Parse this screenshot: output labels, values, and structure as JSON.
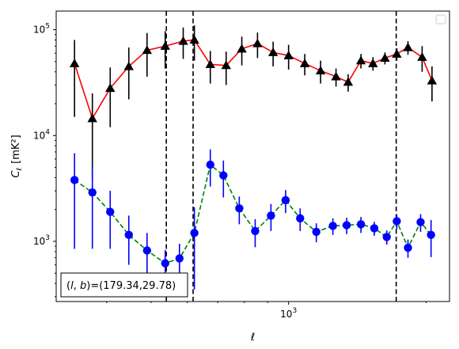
{
  "chart_data": {
    "type": "line",
    "xscale": "log",
    "yscale": "log",
    "xlabel": "ℓ",
    "ylabel_main": "C",
    "ylabel_sub": "ℓ",
    "ylabel_unit": "[mK²]",
    "xlim": [
      310,
      2250
    ],
    "ylim": [
      270,
      150000
    ],
    "x_ticks": [
      {
        "value": 1000,
        "label_base": "10",
        "label_exp": "3"
      }
    ],
    "y_ticks": [
      {
        "value": 1000,
        "label_base": "10",
        "label_exp": "3"
      },
      {
        "value": 10000,
        "label_base": "10",
        "label_exp": "4"
      },
      {
        "value": 100000,
        "label_base": "10",
        "label_exp": "5"
      }
    ],
    "vlines": [
      540,
      618,
      1720
    ],
    "annotation": "(l, b)=(179.34,29.78)",
    "annotation_parts": {
      "open": "(",
      "l": "l",
      "comma": ", ",
      "b": "b",
      "close": ")",
      "value": "=(179.34,29.78)"
    },
    "legend_position": "top-right",
    "series": [
      {
        "color": "#ff0000",
        "line_style": "solid",
        "marker": "triangle",
        "marker_color": "#000000",
        "errorbar_color": "#000000",
        "points": [
          {
            "x": 340,
            "y": 48000,
            "lo": 15000,
            "hi": 80000
          },
          {
            "x": 372,
            "y": 14500,
            "lo": 4000,
            "hi": 25000
          },
          {
            "x": 407,
            "y": 28000,
            "lo": 12000,
            "hi": 44000
          },
          {
            "x": 447,
            "y": 45000,
            "lo": 22000,
            "hi": 68000
          },
          {
            "x": 490,
            "y": 64000,
            "lo": 36000,
            "hi": 93000
          },
          {
            "x": 537,
            "y": 70000,
            "lo": 43000,
            "hi": 97000
          },
          {
            "x": 588,
            "y": 78000,
            "lo": 53000,
            "hi": 105000
          },
          {
            "x": 622,
            "y": 80000,
            "lo": 51000,
            "hi": 110000
          },
          {
            "x": 674,
            "y": 47000,
            "lo": 31000,
            "hi": 63000
          },
          {
            "x": 730,
            "y": 46000,
            "lo": 30000,
            "hi": 62000
          },
          {
            "x": 790,
            "y": 66000,
            "lo": 46000,
            "hi": 86000
          },
          {
            "x": 855,
            "y": 74000,
            "lo": 54000,
            "hi": 94000
          },
          {
            "x": 925,
            "y": 61000,
            "lo": 45000,
            "hi": 77000
          },
          {
            "x": 1000,
            "y": 57000,
            "lo": 42000,
            "hi": 72000
          },
          {
            "x": 1085,
            "y": 48000,
            "lo": 37000,
            "hi": 59000
          },
          {
            "x": 1175,
            "y": 41000,
            "lo": 31000,
            "hi": 51000
          },
          {
            "x": 1270,
            "y": 36000,
            "lo": 29000,
            "hi": 43000
          },
          {
            "x": 1350,
            "y": 32000,
            "lo": 26000,
            "hi": 38000
          },
          {
            "x": 1440,
            "y": 51000,
            "lo": 43000,
            "hi": 59000
          },
          {
            "x": 1530,
            "y": 48000,
            "lo": 41000,
            "hi": 55000
          },
          {
            "x": 1625,
            "y": 54000,
            "lo": 47000,
            "hi": 61000
          },
          {
            "x": 1725,
            "y": 59000,
            "lo": 51000,
            "hi": 67000
          },
          {
            "x": 1825,
            "y": 68000,
            "lo": 58000,
            "hi": 78000
          },
          {
            "x": 1960,
            "y": 55000,
            "lo": 40000,
            "hi": 70000
          },
          {
            "x": 2060,
            "y": 33000,
            "lo": 21000,
            "hi": 45000
          }
        ]
      },
      {
        "color": "#008000",
        "line_style": "dashed",
        "marker": "circle",
        "marker_color": "#0000ff",
        "errorbar_color": "#0000ff",
        "points": [
          {
            "x": 340,
            "y": 3800,
            "lo": 850,
            "hi": 6800
          },
          {
            "x": 372,
            "y": 2900,
            "lo": 850,
            "hi": 5000
          },
          {
            "x": 407,
            "y": 1900,
            "lo": 850,
            "hi": 3000
          },
          {
            "x": 447,
            "y": 1150,
            "lo": 600,
            "hi": 1750
          },
          {
            "x": 490,
            "y": 820,
            "lo": 450,
            "hi": 1200
          },
          {
            "x": 537,
            "y": 620,
            "lo": 420,
            "hi": 830
          },
          {
            "x": 577,
            "y": 690,
            "lo": 450,
            "hi": 950
          },
          {
            "x": 622,
            "y": 1200,
            "lo": 350,
            "hi": 2100
          },
          {
            "x": 674,
            "y": 5300,
            "lo": 3300,
            "hi": 7400
          },
          {
            "x": 720,
            "y": 4200,
            "lo": 2600,
            "hi": 5800
          },
          {
            "x": 780,
            "y": 2050,
            "lo": 1450,
            "hi": 2650
          },
          {
            "x": 845,
            "y": 1250,
            "lo": 880,
            "hi": 1620
          },
          {
            "x": 915,
            "y": 1750,
            "lo": 1250,
            "hi": 2250
          },
          {
            "x": 985,
            "y": 2450,
            "lo": 1850,
            "hi": 3050
          },
          {
            "x": 1060,
            "y": 1650,
            "lo": 1250,
            "hi": 2050
          },
          {
            "x": 1150,
            "y": 1230,
            "lo": 980,
            "hi": 1480
          },
          {
            "x": 1250,
            "y": 1400,
            "lo": 1150,
            "hi": 1650
          },
          {
            "x": 1340,
            "y": 1420,
            "lo": 1170,
            "hi": 1670
          },
          {
            "x": 1440,
            "y": 1450,
            "lo": 1200,
            "hi": 1700
          },
          {
            "x": 1540,
            "y": 1330,
            "lo": 1130,
            "hi": 1530
          },
          {
            "x": 1640,
            "y": 1100,
            "lo": 930,
            "hi": 1270
          },
          {
            "x": 1725,
            "y": 1550,
            "lo": 1300,
            "hi": 1800
          },
          {
            "x": 1825,
            "y": 870,
            "lo": 700,
            "hi": 1040
          },
          {
            "x": 1945,
            "y": 1520,
            "lo": 1230,
            "hi": 1810
          },
          {
            "x": 2050,
            "y": 1150,
            "lo": 710,
            "hi": 1590
          }
        ]
      }
    ]
  },
  "style": {
    "background": "#ffffff",
    "axis_color": "#000000",
    "vline_color": "#000000"
  }
}
